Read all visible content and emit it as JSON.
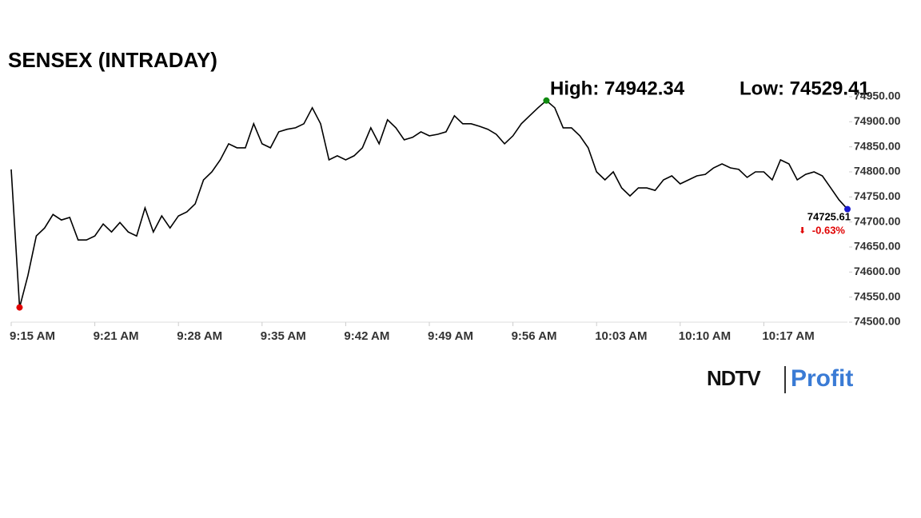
{
  "chart_data": {
    "type": "line",
    "title": "SENSEX (INTRADAY)",
    "annotations": {
      "high": "High: 74942.34",
      "low": "Low: 74529.41",
      "last": "74725.61",
      "change": "-0.63%"
    },
    "brand": {
      "left": "NDTV",
      "right": "Profit"
    },
    "categories": [
      "9:15 AM",
      null,
      null,
      null,
      null,
      null,
      null,
      null,
      null,
      null,
      "9:21 AM",
      null,
      null,
      null,
      null,
      null,
      null,
      null,
      null,
      null,
      "9:28 AM",
      null,
      null,
      null,
      null,
      null,
      null,
      null,
      null,
      null,
      "9:35 AM",
      null,
      null,
      null,
      null,
      null,
      null,
      null,
      null,
      null,
      "9:42 AM",
      null,
      null,
      null,
      null,
      null,
      null,
      null,
      null,
      null,
      "9:49 AM",
      null,
      null,
      null,
      null,
      null,
      null,
      null,
      null,
      null,
      "9:56 AM",
      null,
      null,
      null,
      null,
      null,
      null,
      null,
      null,
      null,
      "10:03 AM",
      null,
      null,
      null,
      null,
      null,
      null,
      null,
      null,
      null,
      "10:10 AM",
      null,
      null,
      null,
      null,
      null,
      null,
      null,
      null,
      null,
      "10:17 AM",
      null,
      null,
      null,
      null,
      null,
      null,
      null,
      null,
      null,
      null
    ],
    "series": [
      {
        "color": "#000000",
        "values": [
          74805,
          74529.41,
          74593,
          74672,
          74688,
          74715,
          74704,
          74709,
          74664,
          74664,
          74672,
          74696,
          74680,
          74699,
          74680,
          74672,
          74728,
          74680,
          74712,
          74688,
          74712,
          74720,
          74736,
          74784,
          74800,
          74824,
          74856,
          74848,
          74848,
          74896,
          74856,
          74848,
          74880,
          74885,
          74888,
          74896,
          74928,
          74896,
          74824,
          74832,
          74824,
          74832,
          74848,
          74888,
          74856,
          74904,
          74888,
          74864,
          74869,
          74880,
          74872,
          74875,
          74880,
          74912,
          74896,
          74896,
          74891,
          74885,
          74875,
          74856,
          74872,
          74896,
          74912,
          74928,
          74942.34,
          74928,
          74888,
          74888,
          74872,
          74848,
          74800,
          74784,
          74800,
          74768,
          74752,
          74768,
          74768,
          74763,
          74784,
          74792,
          74776,
          74784,
          74792,
          74795,
          74808,
          74816,
          74808,
          74805,
          74789,
          74800,
          74800,
          74784,
          74824,
          74816,
          74784,
          74795,
          74800,
          74792,
          74768,
          74744,
          74725.61
        ]
      }
    ],
    "marker_colors": {
      "low": "#e00000",
      "high": "#108a10",
      "last": "#1a1ad0"
    },
    "change_color": "#e00000",
    "ylim": [
      74500,
      74950
    ],
    "yticks": [
      {
        "value": 74500,
        "label": "74500.00"
      },
      {
        "value": 74550,
        "label": "74550.00"
      },
      {
        "value": 74600,
        "label": "74600.00"
      },
      {
        "value": 74650,
        "label": "74650.00"
      },
      {
        "value": 74700,
        "label": "74700.00"
      },
      {
        "value": 74750,
        "label": "74750.00"
      },
      {
        "value": 74800,
        "label": "74800.00"
      },
      {
        "value": 74850,
        "label": "74850.00"
      },
      {
        "value": 74900,
        "label": "74900.00"
      },
      {
        "value": 74950,
        "label": "74950.00"
      }
    ],
    "grid": false
  }
}
